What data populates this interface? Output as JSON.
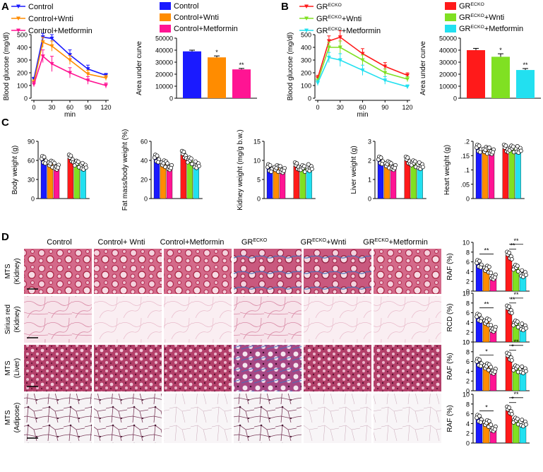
{
  "panel_labels": {
    "a": "A",
    "b": "B",
    "c": "C",
    "d": "D"
  },
  "colors": {
    "control": "#1a1aff",
    "wnti": "#ff8c00",
    "metformin": "#ff1493",
    "gr": "#ff1a1a",
    "gr_wnti": "#80e022",
    "gr_metformin": "#22e0f0"
  },
  "panelA": {
    "line": {
      "ylabel": "Blood glucose (mg/dl)",
      "xlabel": "min",
      "yticks": [
        "0",
        "100",
        "200",
        "300",
        "400",
        "500"
      ],
      "xticks": [
        "0",
        "30",
        "60",
        "90",
        "120"
      ],
      "legend": [
        "Control",
        "Control+Wnti",
        "Control+Metformin"
      ]
    },
    "bar": {
      "ylabel": "Area under curve",
      "yticks": [
        "0",
        "10000",
        "20000",
        "30000",
        "40000",
        "50000"
      ],
      "legend": [
        "Control",
        "Control+Wnti",
        "Control+Metformin"
      ],
      "sig": [
        "",
        "*",
        "**"
      ]
    }
  },
  "panelB": {
    "line": {
      "ylabel": "Blood glucose (mg/dl)",
      "xlabel": "min",
      "yticks": [
        "0",
        "100",
        "200",
        "300",
        "400",
        "500"
      ],
      "xticks": [
        "0",
        "30",
        "60",
        "90",
        "120"
      ],
      "legend": [
        {
          "base": "GR",
          "sup": "ECKO",
          "rest": ""
        },
        {
          "base": "GR",
          "sup": "ECKO",
          "rest": "+Wnti"
        },
        {
          "base": "GR",
          "sup": "ECKO",
          "rest": "+Metformin"
        }
      ]
    },
    "bar": {
      "ylabel": "Area under curve",
      "yticks": [
        "0",
        "10000",
        "20000",
        "30000",
        "40000",
        "50000"
      ],
      "legend": [
        {
          "base": "GR",
          "sup": "ECKO",
          "rest": ""
        },
        {
          "base": "GR",
          "sup": "ECKO",
          "rest": "+Wnti"
        },
        {
          "base": "GR",
          "sup": "ECKO",
          "rest": "+Metformin"
        }
      ],
      "sig": [
        "",
        "*",
        "**"
      ]
    }
  },
  "panelC": [
    {
      "ylabel": "Body weight (g)",
      "yticks": [
        "0",
        "30",
        "60",
        "90"
      ]
    },
    {
      "ylabel": "Fat mass/body weight (%)",
      "yticks": [
        "0",
        "20",
        "40",
        "60"
      ]
    },
    {
      "ylabel": "Kidney weight (mg/g b.w.)",
      "yticks": [
        "0",
        "5",
        "10",
        "15"
      ]
    },
    {
      "ylabel": "Liver weight (g)",
      "yticks": [
        "0",
        "1",
        "2",
        "3"
      ]
    },
    {
      "ylabel": "Heart weight (g)",
      "yticks": [
        "0",
        ".05",
        ".1",
        ".15",
        ".2"
      ]
    }
  ],
  "panelD": {
    "columns": [
      {
        "base": "Control",
        "sup": "",
        "rest": ""
      },
      {
        "base": "Control+ Wnti",
        "sup": "",
        "rest": ""
      },
      {
        "base": "Control+Metformin",
        "sup": "",
        "rest": ""
      },
      {
        "base": "GR",
        "sup": "ECKO",
        "rest": ""
      },
      {
        "base": "GR",
        "sup": "ECKO",
        "rest": "+Wnti"
      },
      {
        "base": "GR",
        "sup": "ECKO",
        "rest": "+Metformin"
      }
    ],
    "rows": [
      {
        "l1": "MTS",
        "l2": "(Kidney)"
      },
      {
        "l1": "Sirius red",
        "l2": "(Kidney)"
      },
      {
        "l1": "MTS",
        "l2": "(Liver)"
      },
      {
        "l1": "MTS",
        "l2": "(Adipose)"
      }
    ],
    "quant": [
      {
        "ylabel": "RAF (%)",
        "yticks": [
          "0",
          "2",
          "4",
          "6",
          "8",
          "10"
        ]
      },
      {
        "ylabel": "RCD (%)",
        "yticks": [
          "0",
          "2",
          "4",
          "6",
          "8",
          "10"
        ]
      },
      {
        "ylabel": "RAF (%)",
        "yticks": [
          "0",
          "2",
          "4",
          "6",
          "8",
          "10"
        ]
      },
      {
        "ylabel": "RAF (%)",
        "yticks": [
          "0",
          "2",
          "4",
          "6",
          "8",
          "10"
        ]
      }
    ],
    "sig": "*",
    "sig2": "**"
  },
  "chart_data": [
    {
      "id": "A-line",
      "type": "line",
      "title": "",
      "xlabel": "min",
      "ylabel": "Blood glucose (mg/dl)",
      "x": [
        0,
        15,
        30,
        60,
        90,
        120
      ],
      "ylim": [
        0,
        550
      ],
      "series": [
        {
          "name": "Control",
          "values": [
            150,
            480,
            470,
            340,
            230,
            180
          ],
          "err": [
            15,
            30,
            30,
            40,
            30,
            15
          ]
        },
        {
          "name": "Control+Wnti",
          "values": [
            125,
            440,
            410,
            300,
            190,
            160
          ],
          "err": [
            20,
            40,
            40,
            35,
            30,
            20
          ]
        },
        {
          "name": "Control+Metformin",
          "values": [
            110,
            330,
            270,
            200,
            140,
            100
          ],
          "err": [
            20,
            50,
            60,
            40,
            30,
            20
          ]
        }
      ]
    },
    {
      "id": "A-bar",
      "type": "bar",
      "ylabel": "Area under curve",
      "ylim": [
        0,
        50000
      ],
      "categories": [
        "Control",
        "Control+Wnti",
        "Control+Metformin"
      ],
      "values": [
        39000,
        34000,
        24000
      ],
      "err": [
        1000,
        1200,
        800
      ]
    },
    {
      "id": "B-line",
      "type": "line",
      "xlabel": "min",
      "ylabel": "Blood glucose (mg/dl)",
      "x": [
        0,
        15,
        30,
        60,
        90,
        120
      ],
      "ylim": [
        0,
        550
      ],
      "series": [
        {
          "name": "GRECKO",
          "values": [
            160,
            450,
            480,
            350,
            250,
            180
          ],
          "err": [
            20,
            40,
            50,
            40,
            30,
            20
          ]
        },
        {
          "name": "GRECKO+Wnti",
          "values": [
            135,
            400,
            400,
            300,
            200,
            150
          ],
          "err": [
            20,
            40,
            50,
            40,
            30,
            20
          ]
        },
        {
          "name": "GRECKO+Metformin",
          "values": [
            120,
            320,
            300,
            220,
            140,
            90
          ],
          "err": [
            20,
            40,
            50,
            40,
            30,
            15
          ]
        }
      ]
    },
    {
      "id": "B-bar",
      "type": "bar",
      "ylabel": "Area under curve",
      "ylim": [
        0,
        50000
      ],
      "categories": [
        "GRECKO",
        "GRECKO+Wnti",
        "GRECKO+Metformin"
      ],
      "values": [
        40000,
        34500,
        23500
      ],
      "err": [
        1500,
        2500,
        1200
      ]
    },
    {
      "id": "C-body",
      "type": "bar",
      "ylabel": "Body weight (g)",
      "ylim": [
        0,
        90
      ],
      "categories": [
        "Control",
        "Control+Wnti",
        "Control+Metformin",
        "GRECKO",
        "GRECKO+Wnti",
        "GRECKO+Metformin"
      ],
      "values": [
        61,
        55,
        50,
        63,
        55,
        50
      ],
      "err": [
        3,
        3,
        3,
        3,
        3,
        3
      ]
    },
    {
      "id": "C-fat",
      "type": "bar",
      "ylabel": "Fat mass/body weight (%)",
      "ylim": [
        0,
        60
      ],
      "categories": [
        "Control",
        "Control+Wnti",
        "Control+Metformin",
        "GRECKO",
        "GRECKO+Wnti",
        "GRECKO+Metformin"
      ],
      "values": [
        42,
        37,
        33,
        46,
        40,
        35
      ],
      "err": [
        2,
        2,
        2,
        2,
        2,
        2
      ]
    },
    {
      "id": "C-kidney",
      "type": "bar",
      "ylabel": "Kidney weight (mg/g b.w.)",
      "ylim": [
        0,
        15
      ],
      "categories": [
        "Control",
        "Control+Wnti",
        "Control+Metformin",
        "GRECKO",
        "GRECKO+Wnti",
        "GRECKO+Metformin"
      ],
      "values": [
        8,
        8,
        7.5,
        8.5,
        8,
        8
      ],
      "err": [
        0.5,
        0.5,
        0.5,
        0.5,
        0.5,
        0.5
      ]
    },
    {
      "id": "C-liver",
      "type": "bar",
      "ylabel": "Liver weight (g)",
      "ylim": [
        0,
        3
      ],
      "categories": [
        "Control",
        "Control+Wnti",
        "Control+Metformin",
        "GRECKO",
        "GRECKO+Wnti",
        "GRECKO+Metformin"
      ],
      "values": [
        2.0,
        1.8,
        1.65,
        2.0,
        1.85,
        1.7
      ],
      "err": [
        0.1,
        0.1,
        0.1,
        0.1,
        0.1,
        0.1
      ]
    },
    {
      "id": "C-heart",
      "type": "bar",
      "ylabel": "Heart weight (g)",
      "ylim": [
        0,
        0.2
      ],
      "categories": [
        "Control",
        "Control+Wnti",
        "Control+Metformin",
        "GRECKO",
        "GRECKO+Wnti",
        "GRECKO+Metformin"
      ],
      "values": [
        0.175,
        0.17,
        0.165,
        0.175,
        0.175,
        0.17
      ],
      "err": [
        0.008,
        0.008,
        0.008,
        0.008,
        0.008,
        0.008
      ]
    },
    {
      "id": "D-kidney-MTS",
      "type": "bar",
      "ylabel": "RAF (%)",
      "ylim": [
        0,
        10
      ],
      "categories": [
        "Control",
        "Control+Wnti",
        "Control+Metformin",
        "GRECKO",
        "GRECKO+Wnti",
        "GRECKO+Metformin"
      ],
      "values": [
        5.6,
        4.6,
        3.0,
        7.3,
        4.8,
        3.5
      ],
      "err": [
        0.4,
        0.3,
        0.3,
        0.4,
        0.4,
        0.3
      ]
    },
    {
      "id": "D-kidney-SR",
      "type": "bar",
      "ylabel": "RCD (%)",
      "ylim": [
        0,
        10
      ],
      "categories": [
        "Control",
        "Control+Wnti",
        "Control+Metformin",
        "GRECKO",
        "GRECKO+Wnti",
        "GRECKO+Metformin"
      ],
      "values": [
        5.0,
        4.2,
        2.7,
        6.7,
        3.8,
        3.0
      ],
      "err": [
        0.4,
        0.3,
        0.3,
        0.4,
        0.3,
        0.3
      ]
    },
    {
      "id": "D-liver-MTS",
      "type": "bar",
      "ylabel": "RAF (%)",
      "ylim": [
        0,
        10
      ],
      "categories": [
        "Control",
        "Control+Wnti",
        "Control+Metformin",
        "GRECKO",
        "GRECKO+Wnti",
        "GRECKO+Metformin"
      ],
      "values": [
        5.8,
        5.0,
        4.1,
        7.0,
        4.6,
        4.2
      ],
      "err": [
        0.3,
        0.3,
        0.3,
        0.4,
        0.4,
        0.3
      ]
    },
    {
      "id": "D-adipose-MTS",
      "type": "bar",
      "ylabel": "RAF (%)",
      "ylim": [
        0,
        10
      ],
      "categories": [
        "Control",
        "Control+Wnti",
        "Control+Metformin",
        "GRECKO",
        "GRECKO+Wnti",
        "GRECKO+Metformin"
      ],
      "values": [
        5.0,
        4.1,
        3.0,
        6.7,
        4.6,
        4.0
      ],
      "err": [
        0.3,
        0.3,
        0.3,
        0.5,
        0.4,
        0.4
      ]
    }
  ]
}
